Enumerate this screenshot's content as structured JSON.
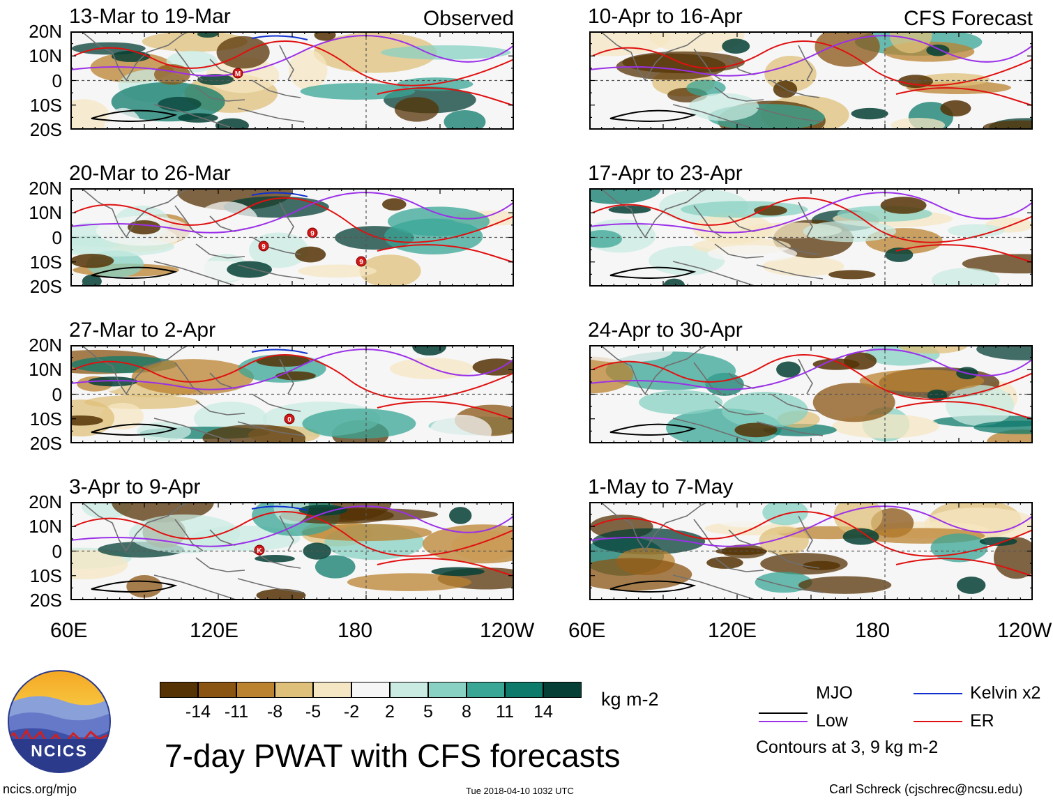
{
  "figure": {
    "main_title": "7-day PWAT with CFS forecasts",
    "website": "ncics.org/mjo",
    "timestamp": "Tue 2018-04-10 1032 UTC",
    "credit": "Carl Schreck (cjschrec@ncsu.edu)",
    "logo_text": "NCICS",
    "units": "kg m-2",
    "contour_note": "Contours at 3, 9 kg m-2"
  },
  "axes": {
    "y_ticks": [
      "20N",
      "10N",
      "0",
      "10S",
      "20S"
    ],
    "x_ticks": [
      "60E",
      "120E",
      "180",
      "120W"
    ]
  },
  "observed_label": "Observed",
  "forecast_label": "CFS Forecast",
  "panels": [
    {
      "title": "13-Mar to 19-Mar",
      "kind": "observed",
      "cyclone_marks": [
        "M"
      ]
    },
    {
      "title": "20-Mar to 26-Mar",
      "kind": "observed",
      "cyclone_marks": [
        "9",
        "9",
        "9"
      ]
    },
    {
      "title": "27-Mar to 2-Apr",
      "kind": "observed",
      "cyclone_marks": [
        "0"
      ]
    },
    {
      "title": "3-Apr to 9-Apr",
      "kind": "observed",
      "cyclone_marks": [
        "K"
      ]
    },
    {
      "title": "10-Apr to 16-Apr",
      "kind": "forecast"
    },
    {
      "title": "17-Apr to 23-Apr",
      "kind": "forecast"
    },
    {
      "title": "24-Apr to 30-Apr",
      "kind": "forecast"
    },
    {
      "title": "1-May to 7-May",
      "kind": "forecast"
    }
  ],
  "colorbar": {
    "colors": [
      "#553305",
      "#8a5413",
      "#bb8230",
      "#dfc07a",
      "#f5e7c3",
      "#f6f6f6",
      "#c9ebe2",
      "#88d1c3",
      "#3aa696",
      "#0d7a6b",
      "#053f35"
    ],
    "ticks": [
      "-14",
      "-11",
      "-8",
      "-5",
      "-2",
      "2",
      "5",
      "8",
      "11",
      "14"
    ]
  },
  "legend": [
    {
      "label": "MJO",
      "color": "#000000"
    },
    {
      "label": "Low",
      "color": "#9b30e8"
    },
    {
      "label": "Kelvin x2",
      "color": "#1030d0"
    },
    {
      "label": "ER",
      "color": "#e01010"
    }
  ]
}
